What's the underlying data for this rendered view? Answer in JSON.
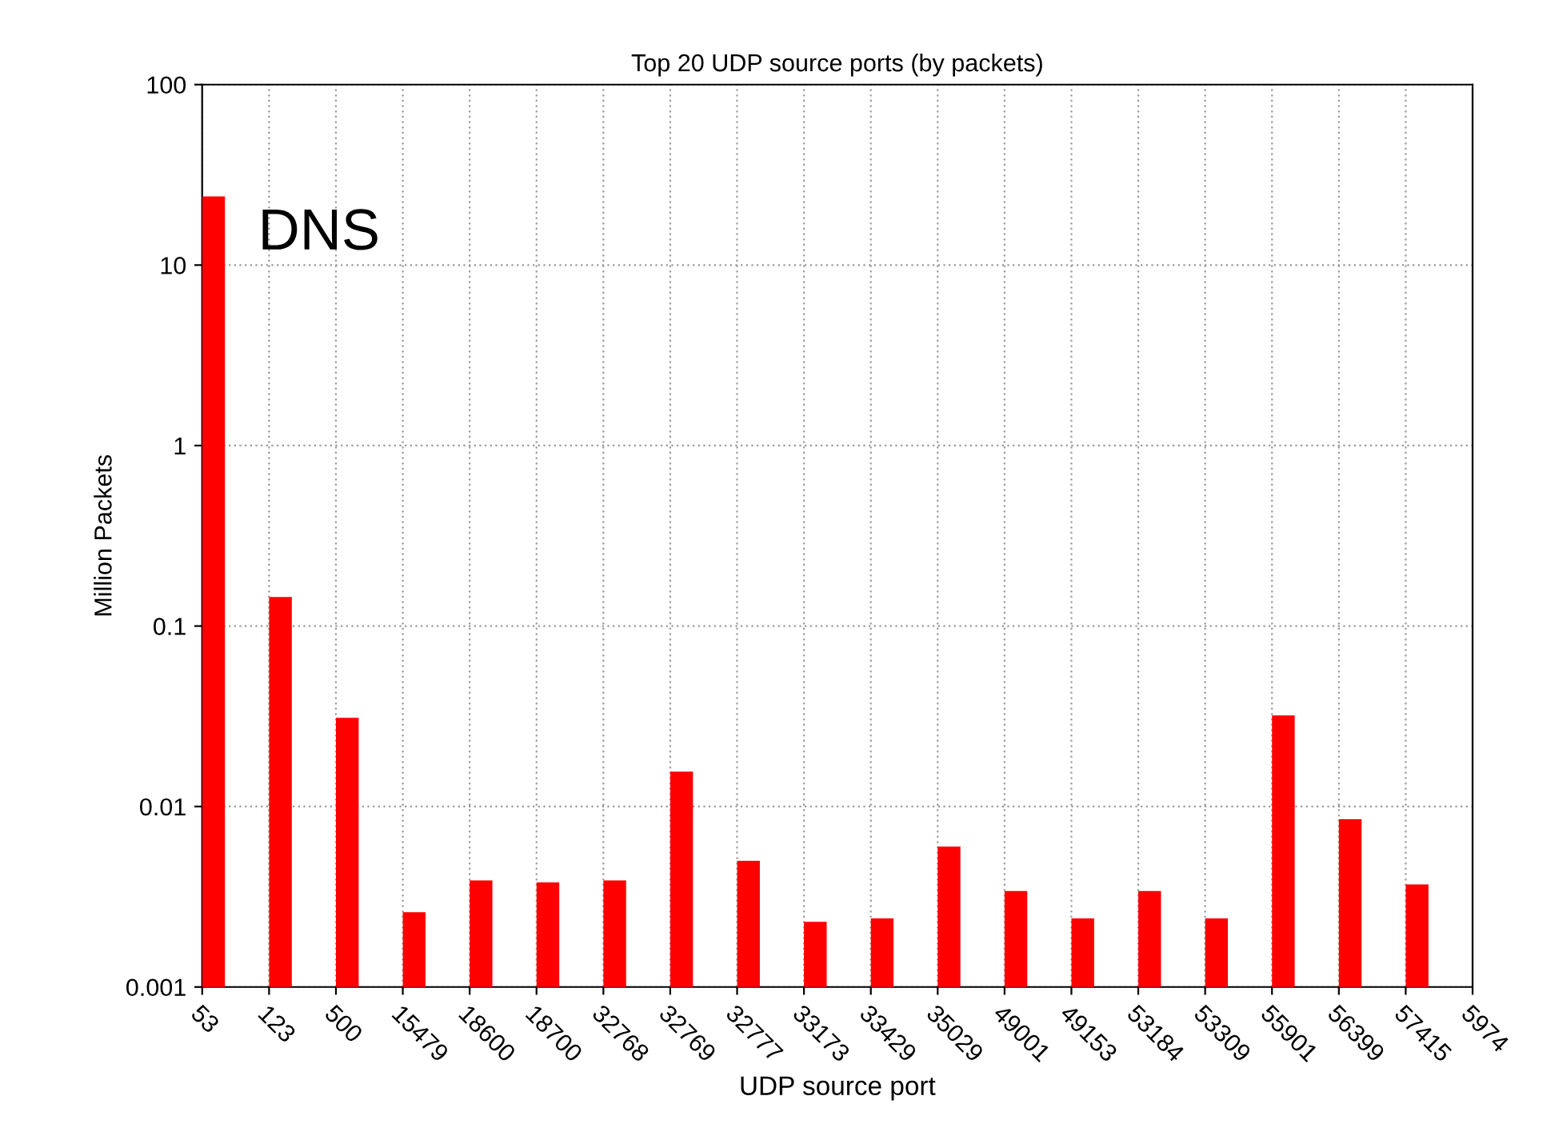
{
  "chart_data": {
    "type": "bar",
    "title": "Top 20 UDP source ports (by packets)",
    "xlabel": "UDP source port",
    "ylabel": "Million Packets",
    "categories": [
      "53",
      "123",
      "500",
      "15479",
      "18600",
      "18700",
      "32768",
      "32769",
      "32777",
      "33173",
      "33429",
      "35029",
      "49001",
      "49153",
      "53184",
      "53309",
      "55901",
      "56399",
      "57415",
      "5974"
    ],
    "series": [
      {
        "color": "#ff0000",
        "values": [
          24,
          0.145,
          0.031,
          0.0026,
          0.0039,
          0.0038,
          0.0039,
          0.0156,
          0.005,
          0.0023,
          0.0024,
          0.006,
          0.0034,
          0.0024,
          0.0034,
          0.0024,
          0.032,
          0.0085,
          0.0037,
          null
        ]
      }
    ],
    "log": "y",
    "ylim": [
      0.001,
      100
    ],
    "yticks": [
      0.001,
      0.01,
      0.1,
      1,
      10,
      100
    ],
    "grid": true,
    "legend": false,
    "annotations": [
      {
        "text": "DNS",
        "x": "53",
        "y": 24
      }
    ]
  }
}
